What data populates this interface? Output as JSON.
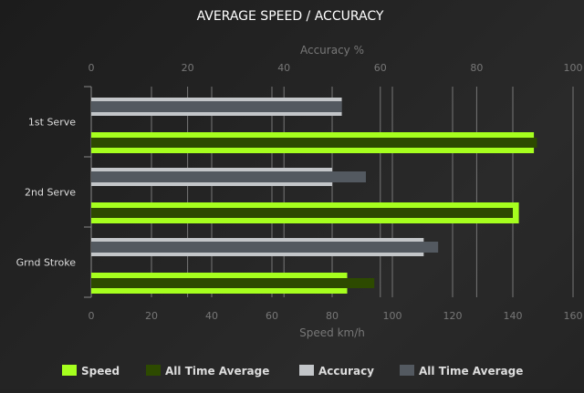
{
  "chart_data": {
    "type": "bar",
    "orientation": "horizontal",
    "title": "AVERAGE SPEED / ACCURACY",
    "categories": [
      "1st Serve",
      "2nd Serve",
      "Grnd Stroke"
    ],
    "top_axis": {
      "label": "Accuracy %",
      "range": [
        0,
        100
      ],
      "ticks": [
        0,
        20,
        40,
        60,
        80,
        100
      ]
    },
    "bottom_axis": {
      "label": "Speed km/h",
      "range": [
        0,
        160
      ],
      "ticks": [
        0,
        20,
        40,
        60,
        80,
        100,
        120,
        140,
        160
      ]
    },
    "grid": true,
    "legend_position": "bottom",
    "series": [
      {
        "name": "Speed",
        "axis": "speed",
        "color": "#a6ff1e",
        "values": [
          147,
          142,
          85
        ]
      },
      {
        "name": "All Time Average",
        "axis": "speed",
        "color": "#2d4a00",
        "values": [
          148,
          140,
          94
        ]
      },
      {
        "name": "Accuracy",
        "axis": "accuracy",
        "color": "#c3c6c9",
        "values": [
          52,
          50,
          69
        ]
      },
      {
        "name": "All Time Average",
        "axis": "accuracy",
        "color": "#535960",
        "values": [
          52,
          57,
          72
        ]
      }
    ]
  }
}
